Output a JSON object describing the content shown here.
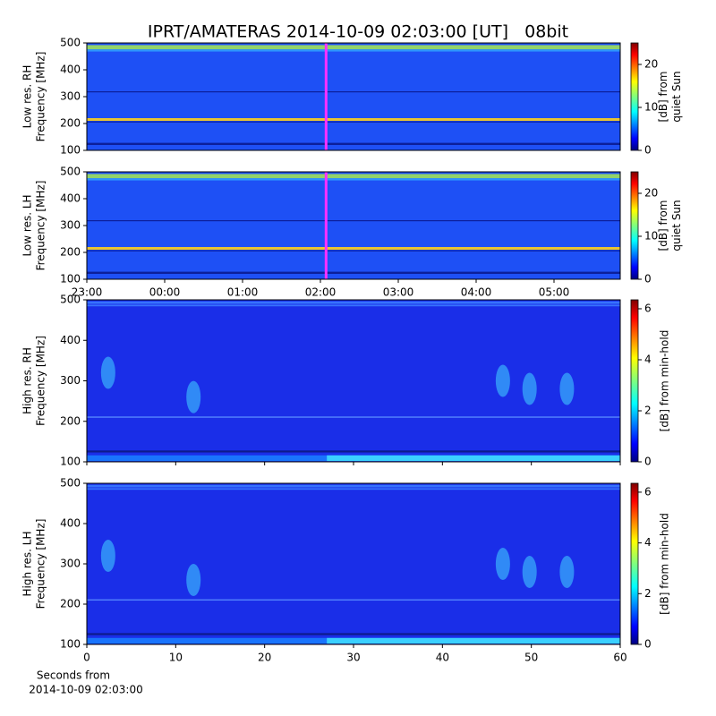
{
  "chart_data": [
    {
      "type": "spectrogram",
      "title": "IPRT/AMATERAS 2014-10-09 02:03:00 [UT]   08bit",
      "ylabel": [
        "Low res. RH",
        "Frequency [MHz]"
      ],
      "ylim": [
        100,
        500
      ],
      "yticks": [
        100,
        200,
        300,
        400,
        500
      ],
      "colorbar": {
        "label": [
          "[dB] from",
          "quiet Sun"
        ],
        "lim": [
          0,
          25
        ],
        "ticks": [
          0,
          10,
          20
        ]
      }
    },
    {
      "type": "spectrogram",
      "ylabel": [
        "Low res. LH",
        "Frequency [MHz]"
      ],
      "ylim": [
        100,
        500
      ],
      "yticks": [
        100,
        200,
        300,
        400,
        500
      ],
      "xtick_labels": [
        "23:00",
        "00:00",
        "01:00",
        "02:00",
        "03:00",
        "04:00",
        "05:00"
      ],
      "colorbar": {
        "label": [
          "[dB] from",
          "quiet Sun"
        ],
        "lim": [
          0,
          25
        ],
        "ticks": [
          0,
          10,
          20
        ]
      }
    },
    {
      "type": "spectrogram",
      "ylabel": [
        "High res. RH",
        "Frequency [MHz]"
      ],
      "ylim": [
        100,
        500
      ],
      "yticks": [
        100,
        200,
        300,
        400,
        500
      ],
      "xlim": [
        0,
        60
      ],
      "xticks": [
        0,
        10,
        20,
        30,
        40,
        50,
        60
      ],
      "colorbar": {
        "label": [
          "[dB] from min-hold"
        ],
        "lim": [
          0,
          6.35
        ],
        "ticks": [
          0,
          2,
          4,
          6
        ]
      }
    },
    {
      "type": "spectrogram",
      "ylabel": [
        "High res. LH",
        "Frequency [MHz]"
      ],
      "ylim": [
        100,
        500
      ],
      "yticks": [
        100,
        200,
        300,
        400,
        500
      ],
      "xlim": [
        0,
        60
      ],
      "xticks": [
        0,
        10,
        20,
        30,
        40,
        50,
        60
      ],
      "xlabel": [
        "Seconds from",
        "2014-10-09 02:03:00"
      ],
      "colorbar": {
        "label": [
          "[dB] from min-hold"
        ],
        "lim": [
          0,
          6.35
        ],
        "ticks": [
          0,
          2,
          4,
          6
        ]
      }
    }
  ]
}
